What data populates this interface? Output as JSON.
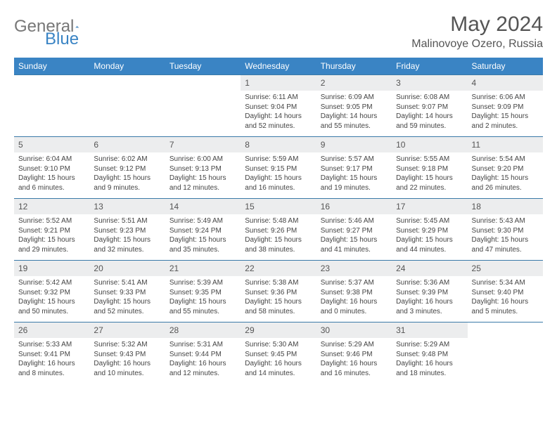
{
  "logo": {
    "text1": "General",
    "text2": "Blue"
  },
  "title": "May 2024",
  "location": "Malinovoye Ozero, Russia",
  "weekdays": [
    "Sunday",
    "Monday",
    "Tuesday",
    "Wednesday",
    "Thursday",
    "Friday",
    "Saturday"
  ],
  "colors": {
    "header_bg": "#3a84c4",
    "header_text": "#ffffff",
    "daynum_bg": "#ecedee",
    "row_border": "#3a7aa8"
  },
  "weeks": [
    [
      null,
      null,
      null,
      {
        "n": "1",
        "sr": "Sunrise: 6:11 AM",
        "ss": "Sunset: 9:04 PM",
        "dl": "Daylight: 14 hours and 52 minutes."
      },
      {
        "n": "2",
        "sr": "Sunrise: 6:09 AM",
        "ss": "Sunset: 9:05 PM",
        "dl": "Daylight: 14 hours and 55 minutes."
      },
      {
        "n": "3",
        "sr": "Sunrise: 6:08 AM",
        "ss": "Sunset: 9:07 PM",
        "dl": "Daylight: 14 hours and 59 minutes."
      },
      {
        "n": "4",
        "sr": "Sunrise: 6:06 AM",
        "ss": "Sunset: 9:09 PM",
        "dl": "Daylight: 15 hours and 2 minutes."
      }
    ],
    [
      {
        "n": "5",
        "sr": "Sunrise: 6:04 AM",
        "ss": "Sunset: 9:10 PM",
        "dl": "Daylight: 15 hours and 6 minutes."
      },
      {
        "n": "6",
        "sr": "Sunrise: 6:02 AM",
        "ss": "Sunset: 9:12 PM",
        "dl": "Daylight: 15 hours and 9 minutes."
      },
      {
        "n": "7",
        "sr": "Sunrise: 6:00 AM",
        "ss": "Sunset: 9:13 PM",
        "dl": "Daylight: 15 hours and 12 minutes."
      },
      {
        "n": "8",
        "sr": "Sunrise: 5:59 AM",
        "ss": "Sunset: 9:15 PM",
        "dl": "Daylight: 15 hours and 16 minutes."
      },
      {
        "n": "9",
        "sr": "Sunrise: 5:57 AM",
        "ss": "Sunset: 9:17 PM",
        "dl": "Daylight: 15 hours and 19 minutes."
      },
      {
        "n": "10",
        "sr": "Sunrise: 5:55 AM",
        "ss": "Sunset: 9:18 PM",
        "dl": "Daylight: 15 hours and 22 minutes."
      },
      {
        "n": "11",
        "sr": "Sunrise: 5:54 AM",
        "ss": "Sunset: 9:20 PM",
        "dl": "Daylight: 15 hours and 26 minutes."
      }
    ],
    [
      {
        "n": "12",
        "sr": "Sunrise: 5:52 AM",
        "ss": "Sunset: 9:21 PM",
        "dl": "Daylight: 15 hours and 29 minutes."
      },
      {
        "n": "13",
        "sr": "Sunrise: 5:51 AM",
        "ss": "Sunset: 9:23 PM",
        "dl": "Daylight: 15 hours and 32 minutes."
      },
      {
        "n": "14",
        "sr": "Sunrise: 5:49 AM",
        "ss": "Sunset: 9:24 PM",
        "dl": "Daylight: 15 hours and 35 minutes."
      },
      {
        "n": "15",
        "sr": "Sunrise: 5:48 AM",
        "ss": "Sunset: 9:26 PM",
        "dl": "Daylight: 15 hours and 38 minutes."
      },
      {
        "n": "16",
        "sr": "Sunrise: 5:46 AM",
        "ss": "Sunset: 9:27 PM",
        "dl": "Daylight: 15 hours and 41 minutes."
      },
      {
        "n": "17",
        "sr": "Sunrise: 5:45 AM",
        "ss": "Sunset: 9:29 PM",
        "dl": "Daylight: 15 hours and 44 minutes."
      },
      {
        "n": "18",
        "sr": "Sunrise: 5:43 AM",
        "ss": "Sunset: 9:30 PM",
        "dl": "Daylight: 15 hours and 47 minutes."
      }
    ],
    [
      {
        "n": "19",
        "sr": "Sunrise: 5:42 AM",
        "ss": "Sunset: 9:32 PM",
        "dl": "Daylight: 15 hours and 50 minutes."
      },
      {
        "n": "20",
        "sr": "Sunrise: 5:41 AM",
        "ss": "Sunset: 9:33 PM",
        "dl": "Daylight: 15 hours and 52 minutes."
      },
      {
        "n": "21",
        "sr": "Sunrise: 5:39 AM",
        "ss": "Sunset: 9:35 PM",
        "dl": "Daylight: 15 hours and 55 minutes."
      },
      {
        "n": "22",
        "sr": "Sunrise: 5:38 AM",
        "ss": "Sunset: 9:36 PM",
        "dl": "Daylight: 15 hours and 58 minutes."
      },
      {
        "n": "23",
        "sr": "Sunrise: 5:37 AM",
        "ss": "Sunset: 9:38 PM",
        "dl": "Daylight: 16 hours and 0 minutes."
      },
      {
        "n": "24",
        "sr": "Sunrise: 5:36 AM",
        "ss": "Sunset: 9:39 PM",
        "dl": "Daylight: 16 hours and 3 minutes."
      },
      {
        "n": "25",
        "sr": "Sunrise: 5:34 AM",
        "ss": "Sunset: 9:40 PM",
        "dl": "Daylight: 16 hours and 5 minutes."
      }
    ],
    [
      {
        "n": "26",
        "sr": "Sunrise: 5:33 AM",
        "ss": "Sunset: 9:41 PM",
        "dl": "Daylight: 16 hours and 8 minutes."
      },
      {
        "n": "27",
        "sr": "Sunrise: 5:32 AM",
        "ss": "Sunset: 9:43 PM",
        "dl": "Daylight: 16 hours and 10 minutes."
      },
      {
        "n": "28",
        "sr": "Sunrise: 5:31 AM",
        "ss": "Sunset: 9:44 PM",
        "dl": "Daylight: 16 hours and 12 minutes."
      },
      {
        "n": "29",
        "sr": "Sunrise: 5:30 AM",
        "ss": "Sunset: 9:45 PM",
        "dl": "Daylight: 16 hours and 14 minutes."
      },
      {
        "n": "30",
        "sr": "Sunrise: 5:29 AM",
        "ss": "Sunset: 9:46 PM",
        "dl": "Daylight: 16 hours and 16 minutes."
      },
      {
        "n": "31",
        "sr": "Sunrise: 5:29 AM",
        "ss": "Sunset: 9:48 PM",
        "dl": "Daylight: 16 hours and 18 minutes."
      },
      null
    ]
  ]
}
